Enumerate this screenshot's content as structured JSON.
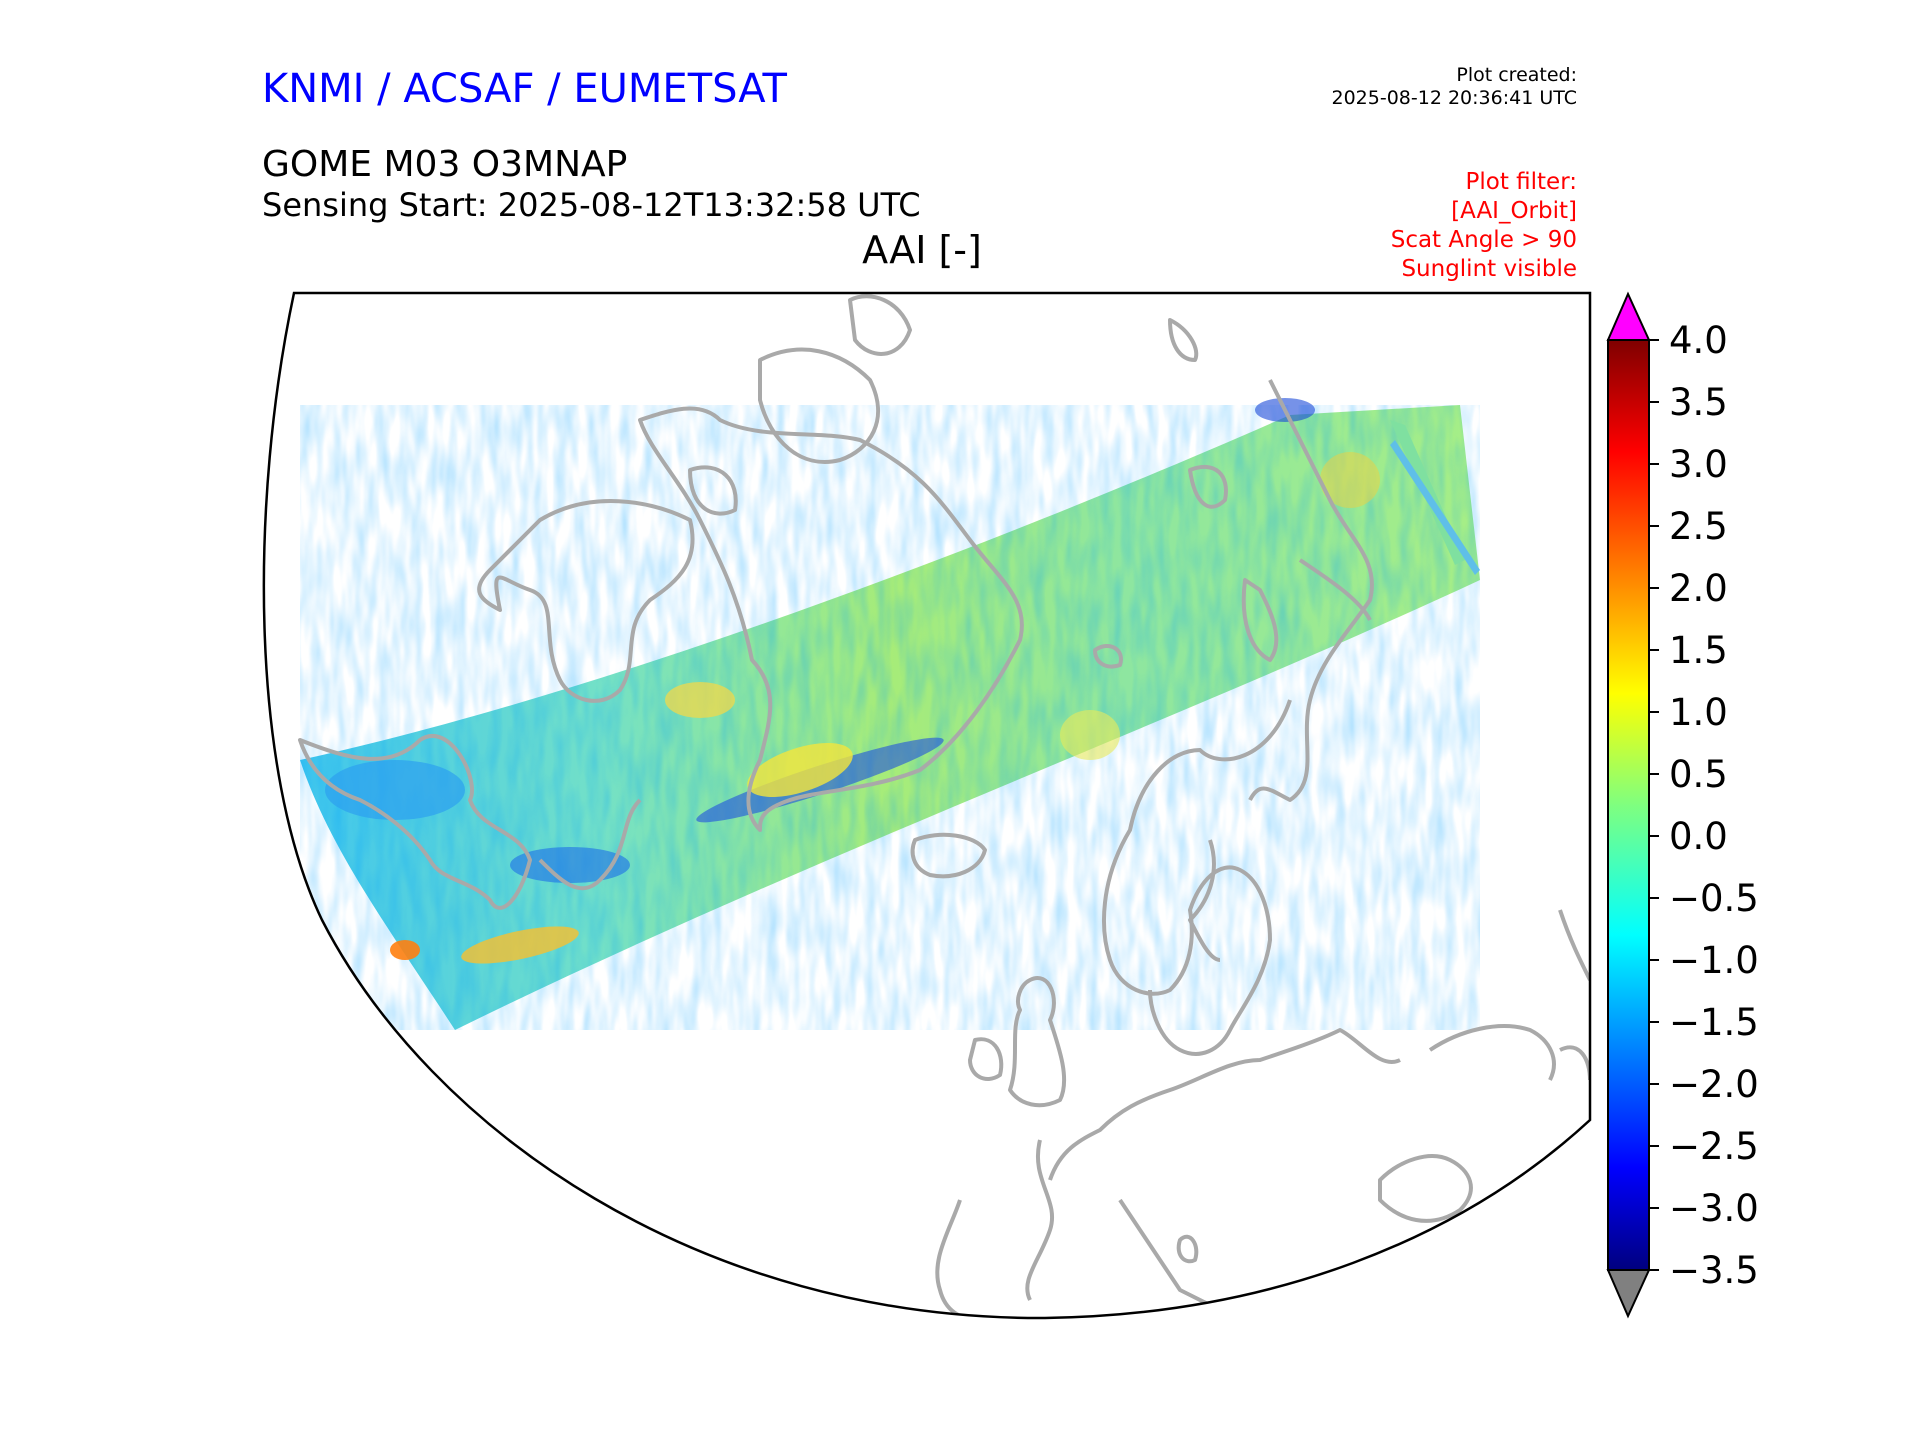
{
  "header": {
    "organization": "KNMI / ACSAF / EUMETSAT",
    "plot_created_label": "Plot created:",
    "plot_created_value": "2025-08-12 20:36:41 UTC",
    "product": "GOME M03 O3MNAP",
    "sensing_start": "Sensing Start: 2025-08-12T13:32:58 UTC",
    "variable": "AAI [-]",
    "filters": [
      "Plot filter:",
      "[AAI_Orbit]",
      "Scat Angle > 90",
      "Sunglint visible"
    ]
  },
  "colorbar": {
    "colormap": "jet",
    "min": -3.5,
    "max": 4.0,
    "ticks": [
      "4.0",
      "3.5",
      "3.0",
      "2.5",
      "2.0",
      "1.5",
      "1.0",
      "0.5",
      "0.0",
      "−0.5",
      "−1.0",
      "−1.5",
      "−2.0",
      "−2.5",
      "−3.0",
      "−3.5"
    ],
    "over_color": "#ff00ff",
    "under_color": "#808080"
  },
  "map": {
    "region": "North Atlantic / Arctic / Europe",
    "coastline_color": "#a9a9a9",
    "swath": "AAI orbit swath from Labrador across Greenland and Svalbard to the Russian Arctic"
  }
}
